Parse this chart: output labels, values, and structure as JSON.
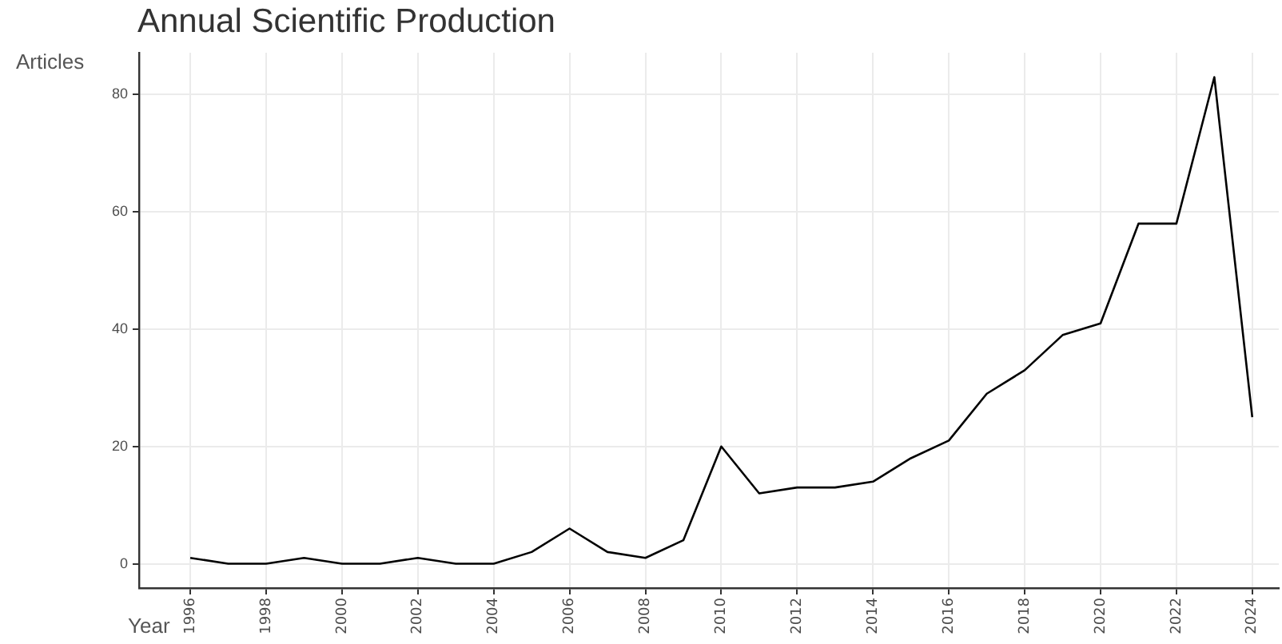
{
  "chart_data": {
    "type": "line",
    "title": "Annual Scientific Production",
    "xlabel": "Year",
    "ylabel": "Articles",
    "x": [
      1996,
      1997,
      1998,
      1999,
      2000,
      2001,
      2002,
      2003,
      2004,
      2005,
      2006,
      2007,
      2008,
      2009,
      2010,
      2011,
      2012,
      2013,
      2014,
      2015,
      2016,
      2017,
      2018,
      2019,
      2020,
      2021,
      2022,
      2023,
      2024
    ],
    "series": [
      {
        "color": "#000000",
        "values": [
          1,
          0,
          0,
          1,
          0,
          0,
          1,
          0,
          0,
          2,
          6,
          2,
          1,
          4,
          20,
          12,
          13,
          13,
          14,
          18,
          21,
          29,
          33,
          39,
          41,
          58,
          58,
          83,
          25
        ]
      }
    ],
    "xlim": [
      1994.65,
      2024.7
    ],
    "xticks": [
      1996,
      1998,
      2000,
      2002,
      2004,
      2006,
      2008,
      2010,
      2012,
      2014,
      2016,
      2018,
      2020,
      2022,
      2024
    ],
    "ylim": [
      -4.15,
      87.15
    ],
    "yticks": [
      0,
      20,
      40,
      60,
      80
    ],
    "grid": true,
    "legend": false,
    "marker": "none",
    "line_style": "solid"
  }
}
